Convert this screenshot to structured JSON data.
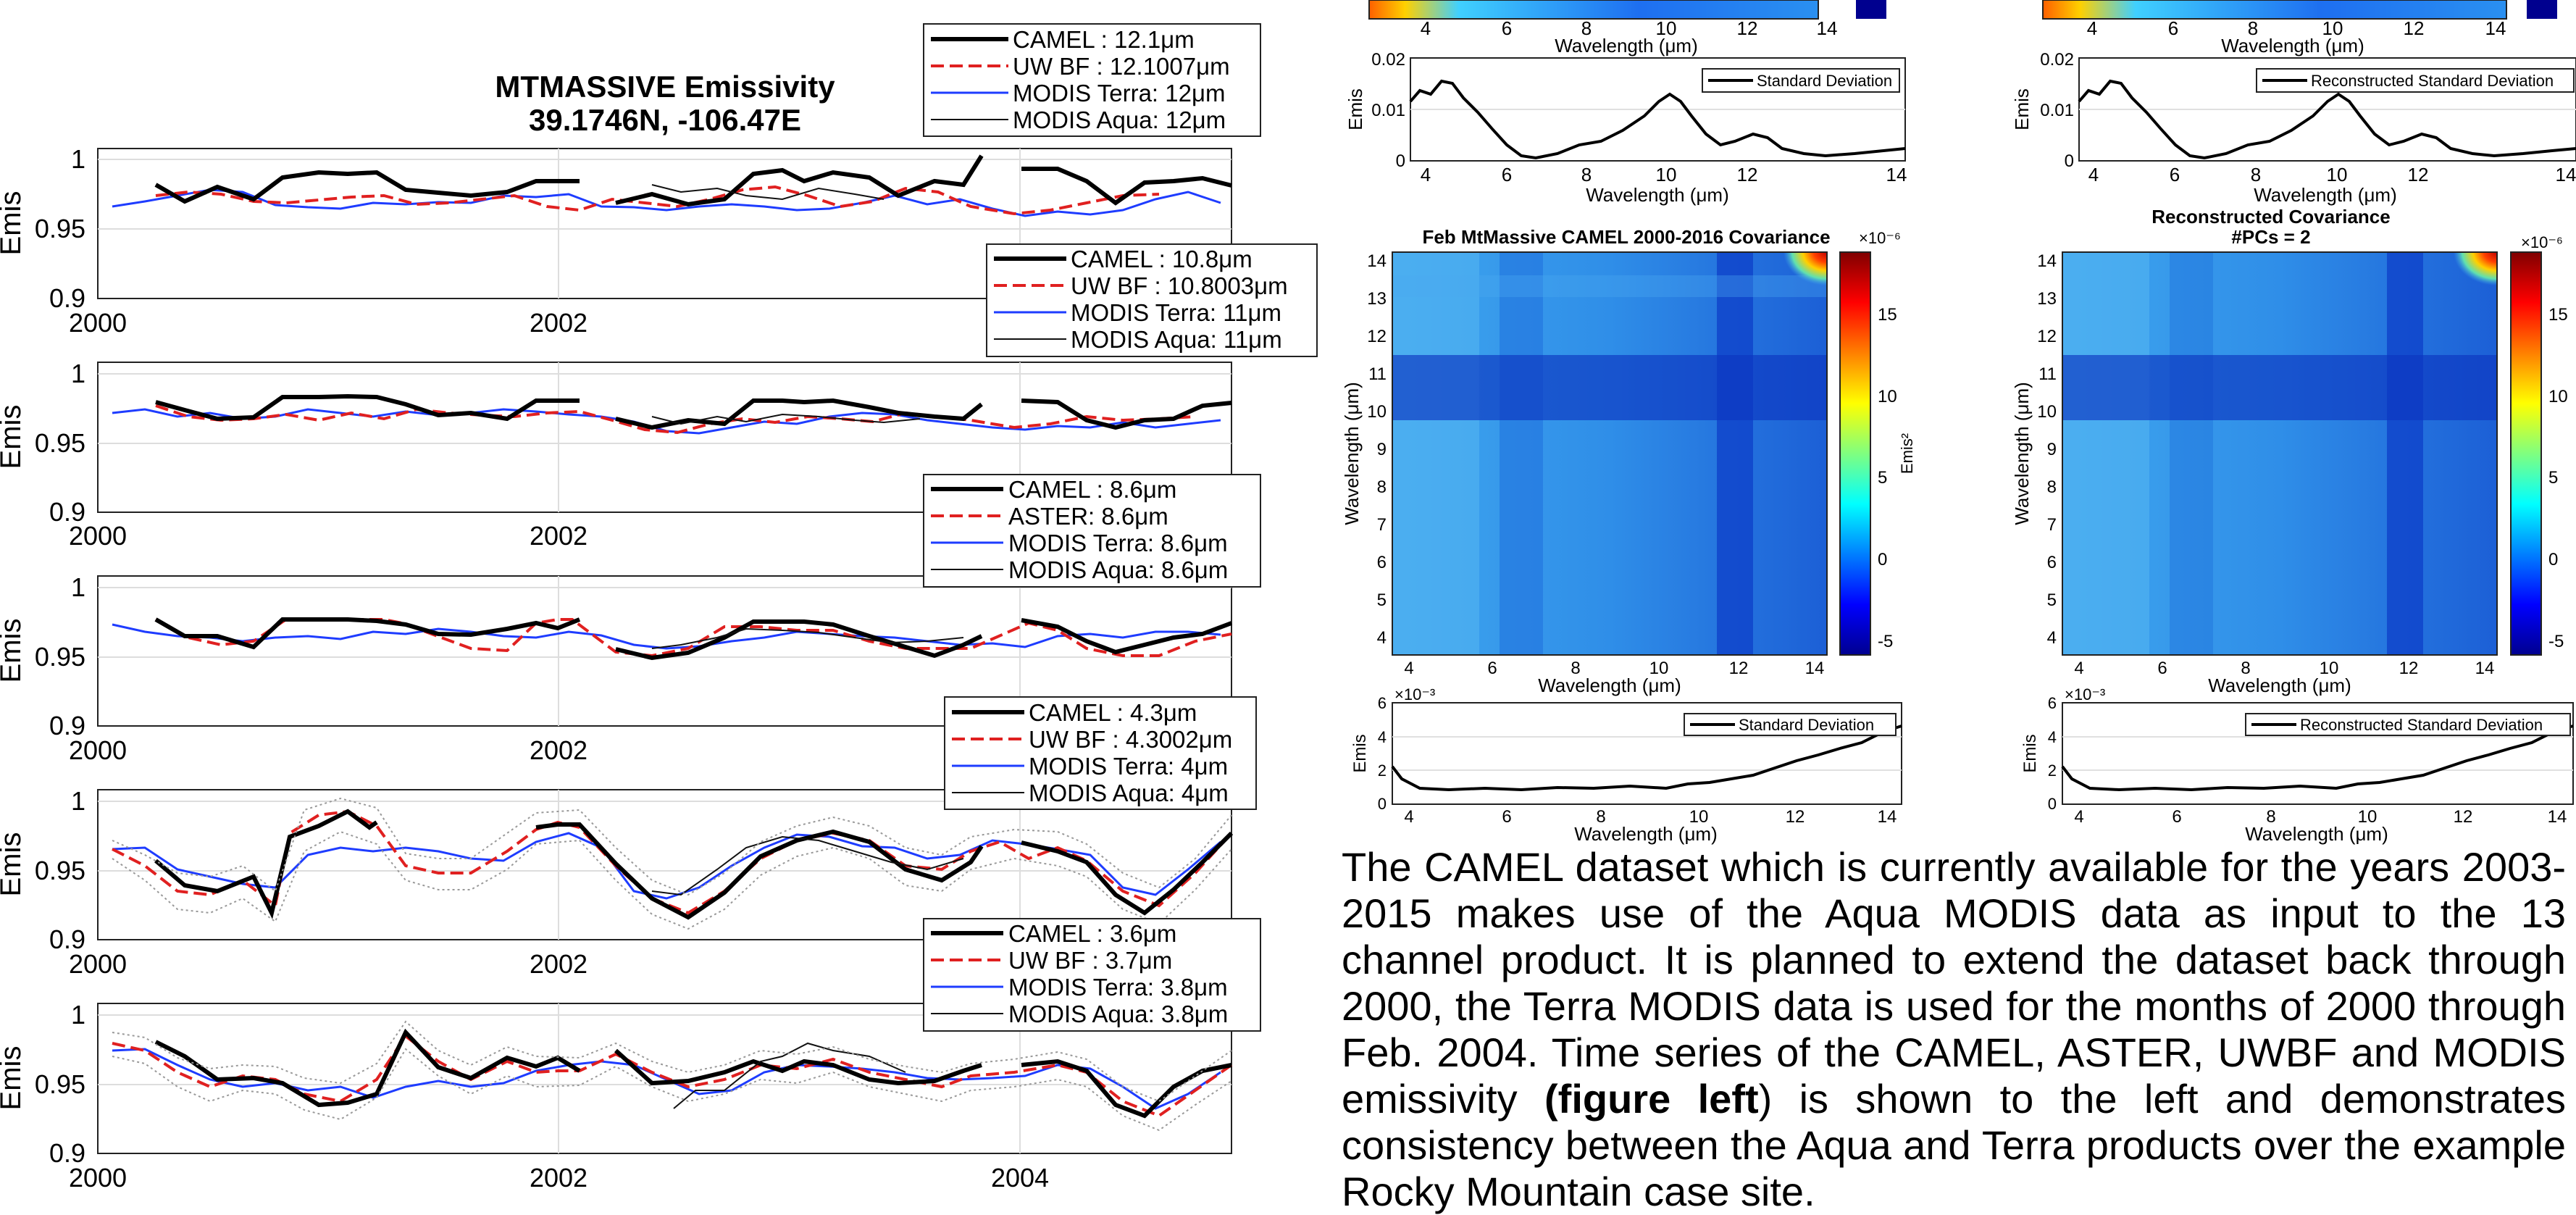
{
  "left_panel": {
    "title": "MTMASSIVE Emissivity",
    "subtitle": "39.1746N, -106.47E",
    "ylabel": "Emis",
    "xticks": [
      "2000",
      "2002",
      "2004"
    ],
    "yticks": [
      "0.9",
      "0.95",
      "1"
    ],
    "legends": [
      [
        "CAMEL : 12.1μm",
        "UW BF : 12.1007μm",
        "MODIS Terra: 12μm",
        "MODIS Aqua: 12μm"
      ],
      [
        "CAMEL : 10.8μm",
        "UW BF : 10.8003μm",
        "MODIS Terra: 11μm",
        "MODIS Aqua: 11μm"
      ],
      [
        "CAMEL : 8.6μm",
        "ASTER: 8.6μm",
        "MODIS Terra: 8.6μm",
        "MODIS Aqua: 8.6μm"
      ],
      [
        "CAMEL : 4.3μm",
        "UW BF : 4.3002μm",
        "MODIS Terra: 4μm",
        "MODIS Aqua: 4μm"
      ],
      [
        "CAMEL : 3.6μm",
        "UW BF : 3.7μm",
        "MODIS Terra: 3.8μm",
        "MODIS Aqua: 3.8μm"
      ]
    ]
  },
  "right_panel": {
    "cov_left_title": "Feb MtMassive CAMEL 2000-2016 Covariance",
    "cov_right_title": "Reconstructed Covariance",
    "cov_right_subtitle": "#PCs = 2",
    "std_legend_left": "Standard Deviation",
    "std_legend_right": "Reconstructed Standard Deviation",
    "xlabel": "Wavelength (μm)",
    "ylabel_cov": "Wavelength (μm)",
    "ylabel_std": "Emis",
    "colorbar_label": "Emis²",
    "colorbar_exp": "×10⁻⁶",
    "std_small_exp": "×10⁻³",
    "colorbar_ticks": [
      "15",
      "10",
      "5",
      "0",
      "-5"
    ],
    "wl_ticks": [
      "4",
      "6",
      "8",
      "10",
      "12",
      "14"
    ],
    "wl_yticks": [
      "14",
      "13",
      "12",
      "11",
      "10",
      "9",
      "8",
      "7",
      "6",
      "5",
      "4"
    ],
    "top_std_yticks": [
      "0.02",
      "0.01",
      "0"
    ],
    "bottom_std_yticks": [
      "6",
      "4",
      "2",
      "0"
    ]
  },
  "paragraph": {
    "text_1": "The CAMEL dataset which is currently available for the years 2003-2015 makes use of the Aqua MODIS data as input to the 13 channel product. It is planned to extend the dataset back through 2000, the Terra MODIS data is used for the months of 2000 through Feb. 2004. Time series of the CAMEL, ASTER, UWBF and MODIS emissivity ",
    "bold": "(figure left",
    "text_2": ")  is shown to the left and demonstrates consistency between the Aqua and Terra products over the example Rocky Mountain case site."
  },
  "colors": {
    "camel": "#000000",
    "uwbf": "#e02020",
    "terra": "#1e3cff",
    "aqua": "#111111"
  },
  "chart_data": [
    {
      "type": "line",
      "title": "MTMASSIVE Emissivity",
      "xlim": [
        2000,
        2005
      ],
      "ylim": [
        0.9,
        1.0
      ],
      "series": [
        {
          "name": "CAMEL : 12.1μm",
          "values": [
            0.985,
            0.975,
            0.985,
            0.98,
            0.99,
            0.99,
            0.975,
            0.975,
            0.99,
            0.975,
            0.985,
            0.992,
            0.99,
            0.975,
            0.98,
            0.975,
            0.99,
            0.993,
            0.975,
            0.97
          ]
        },
        {
          "name": "MODIS Terra: 12μm",
          "values": [
            0.968,
            0.972,
            0.975,
            0.97,
            0.97,
            0.973,
            0.97,
            0.975,
            0.972,
            0.965,
            0.97,
            0.968,
            0.962,
            0.966,
            0.97,
            0.968,
            0.962,
            0.965,
            0.97,
            0.968
          ]
        }
      ]
    },
    {
      "type": "line",
      "xlim": [
        2000,
        2005
      ],
      "ylim": [
        0.9,
        1.0
      ],
      "series": [
        {
          "name": "CAMEL : 10.8μm",
          "values": [
            0.98,
            0.97,
            0.975,
            0.98,
            0.98,
            0.975,
            0.97,
            0.98,
            0.97,
            0.965,
            0.975,
            0.978,
            0.975,
            0.97,
            0.965,
            0.975,
            0.98,
            0.975,
            0.965,
            0.975
          ]
        }
      ]
    },
    {
      "type": "line",
      "xlim": [
        2000,
        2005
      ],
      "ylim": [
        0.9,
        1.0
      ],
      "series": [
        {
          "name": "CAMEL : 8.6μm",
          "values": [
            0.975,
            0.965,
            0.955,
            0.98,
            0.975,
            0.965,
            0.97,
            0.975,
            0.965,
            0.955,
            0.975,
            0.975,
            0.97,
            0.96,
            0.955,
            0.965,
            0.978,
            0.97,
            0.955,
            0.97
          ]
        }
      ]
    },
    {
      "type": "line",
      "xlim": [
        2000,
        2005
      ],
      "ylim": [
        0.9,
        1.0
      ],
      "series": [
        {
          "name": "CAMEL : 4.3μm",
          "values": [
            0.965,
            0.935,
            0.94,
            0.92,
            0.975,
            0.98,
            0.965,
            0.955,
            0.96,
            0.975,
            0.985,
            0.93,
            0.915,
            0.95,
            0.97,
            0.975,
            0.95,
            0.93,
            0.96,
            0.965,
            0.925,
            0.975
          ]
        }
      ]
    },
    {
      "type": "line",
      "xlim": [
        2000,
        2005
      ],
      "ylim": [
        0.9,
        1.0
      ],
      "series": [
        {
          "name": "CAMEL : 3.6μm",
          "values": [
            0.975,
            0.96,
            0.945,
            0.95,
            0.94,
            0.925,
            0.98,
            0.96,
            0.97,
            0.965,
            0.975,
            0.945,
            0.95,
            0.975,
            0.97,
            0.95,
            0.96,
            0.965,
            0.93,
            0.965,
            0.97
          ]
        }
      ]
    }
  ]
}
